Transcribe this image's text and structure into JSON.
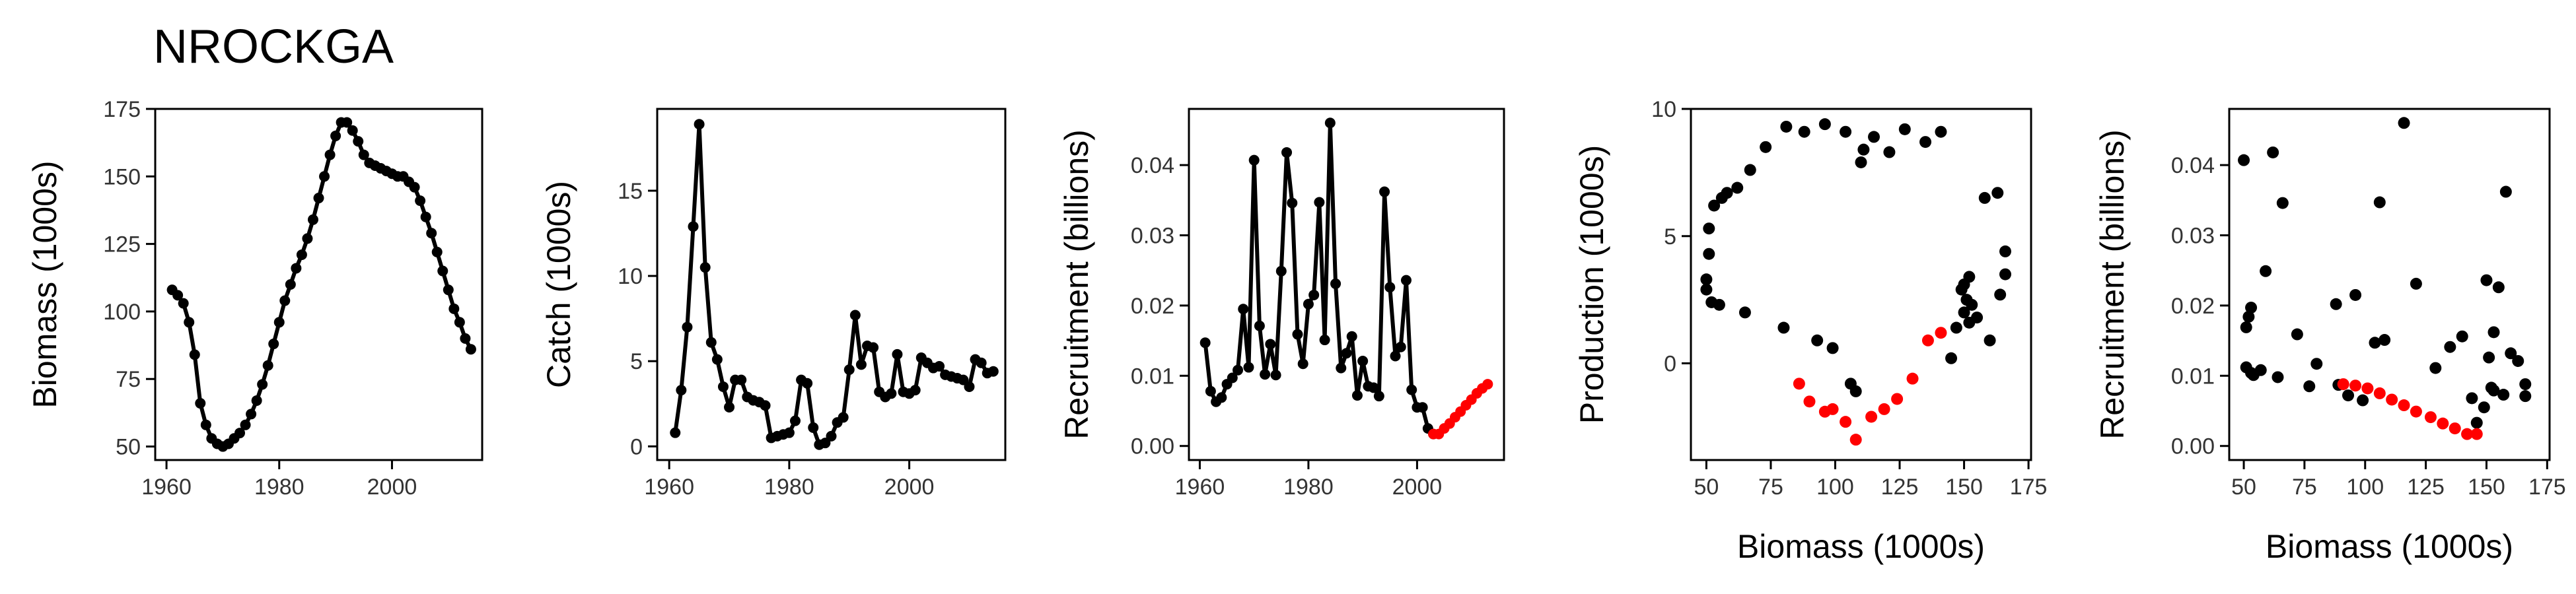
{
  "figure": {
    "title": "NROCKGA"
  },
  "chart_data": [
    {
      "type": "line",
      "ylabel": "Biomass (1000s)",
      "xlabel": "",
      "xlim": [
        1958,
        2016
      ],
      "ylim": [
        45,
        175
      ],
      "xticks": [
        1960,
        1980,
        2000
      ],
      "yticks": [
        50,
        75,
        100,
        125,
        150,
        175
      ],
      "series": [
        {
          "color": "#000000",
          "x": [
            1961,
            1962,
            1963,
            1964,
            1965,
            1966,
            1967,
            1968,
            1969,
            1970,
            1971,
            1972,
            1973,
            1974,
            1975,
            1976,
            1977,
            1978,
            1979,
            1980,
            1981,
            1982,
            1983,
            1984,
            1985,
            1986,
            1987,
            1988,
            1989,
            1990,
            1991,
            1992,
            1993,
            1994,
            1995,
            1996,
            1997,
            1998,
            1999,
            2000,
            2001,
            2002,
            2003,
            2004,
            2005,
            2006,
            2007,
            2008,
            2009,
            2010,
            2011,
            2012,
            2013,
            2014
          ],
          "y": [
            108,
            106,
            103,
            96,
            84,
            66,
            58,
            53,
            51,
            50,
            51,
            53,
            55,
            58,
            62,
            67,
            73,
            80,
            88,
            96,
            104,
            110,
            116,
            121,
            127,
            134,
            142,
            150,
            158,
            165,
            170,
            170,
            167,
            163,
            158,
            155,
            154,
            153,
            152,
            151,
            150,
            150,
            148,
            146,
            141,
            135,
            129,
            122,
            115,
            108,
            101,
            96,
            90,
            86
          ]
        }
      ]
    },
    {
      "type": "line",
      "ylabel": "Catch (1000s)",
      "xlabel": "",
      "xlim": [
        1958,
        2016
      ],
      "ylim": [
        -0.8,
        19.8
      ],
      "xticks": [
        1960,
        1980,
        2000
      ],
      "yticks": [
        0,
        5,
        10,
        15
      ],
      "series": [
        {
          "color": "#000000",
          "x": [
            1961,
            1962,
            1963,
            1964,
            1965,
            1966,
            1967,
            1968,
            1969,
            1970,
            1971,
            1972,
            1973,
            1974,
            1975,
            1976,
            1977,
            1978,
            1979,
            1980,
            1981,
            1982,
            1983,
            1984,
            1985,
            1986,
            1987,
            1988,
            1989,
            1990,
            1991,
            1992,
            1993,
            1994,
            1995,
            1996,
            1997,
            1998,
            1999,
            2000,
            2001,
            2002,
            2003,
            2004,
            2005,
            2006,
            2007,
            2008,
            2009,
            2010,
            2011,
            2012,
            2013,
            2014
          ],
          "y": [
            0.8,
            3.3,
            7,
            12.9,
            18.9,
            10.5,
            6.1,
            5.1,
            3.5,
            2.3,
            3.9,
            3.9,
            2.9,
            2.7,
            2.6,
            2.4,
            0.5,
            0.6,
            0.7,
            0.8,
            1.5,
            3.9,
            3.7,
            1.1,
            0.1,
            0.2,
            0.6,
            1.4,
            1.7,
            4.5,
            7.7,
            4.8,
            5.9,
            5.8,
            3.2,
            2.9,
            3.1,
            5.4,
            3.2,
            3.1,
            3.3,
            5.2,
            4.9,
            4.6,
            4.7,
            4.2,
            4.1,
            4.0,
            3.9,
            3.5,
            5.1,
            4.9,
            4.3,
            4.4
          ]
        }
      ]
    },
    {
      "type": "line",
      "ylabel": "Recruitment (billions)",
      "xlabel": "",
      "xlim": [
        1958,
        2016
      ],
      "ylim": [
        -0.002,
        0.048
      ],
      "xticks": [
        1960,
        1980,
        2000
      ],
      "yticks": [
        0,
        0.01,
        0.02,
        0.03,
        0.04
      ],
      "ytick_labels": [
        "0.00",
        "0.01",
        "0.02",
        "0.03",
        "0.04"
      ],
      "series": [
        {
          "color": "#000000",
          "x": [
            1961,
            1962,
            1963,
            1964,
            1965,
            1966,
            1967,
            1968,
            1969,
            1970,
            1971,
            1972,
            1973,
            1974,
            1975,
            1976,
            1977,
            1978,
            1979,
            1980,
            1981,
            1982,
            1983,
            1984,
            1985,
            1986,
            1987,
            1988,
            1989,
            1990,
            1991,
            1992,
            1993,
            1994,
            1995,
            1996,
            1997,
            1998,
            1999,
            2000,
            2001,
            2002,
            2003
          ],
          "y": [
            0.0147,
            0.0078,
            0.0063,
            0.0069,
            0.0088,
            0.0097,
            0.0108,
            0.0195,
            0.0112,
            0.0407,
            0.0171,
            0.0102,
            0.0145,
            0.0101,
            0.0249,
            0.0418,
            0.0346,
            0.0159,
            0.0117,
            0.0202,
            0.0215,
            0.0347,
            0.0151,
            0.046,
            0.0231,
            0.0111,
            0.0132,
            0.0156,
            0.0072,
            0.0121,
            0.0085,
            0.0083,
            0.0071,
            0.0362,
            0.0226,
            0.0128,
            0.0141,
            0.0236,
            0.008,
            0.0055,
            0.0055,
            0.0025,
            0.0017
          ]
        },
        {
          "color": "#ff0000",
          "x": [
            2003,
            2004,
            2005,
            2006,
            2007,
            2008,
            2009,
            2010,
            2011,
            2012,
            2013
          ],
          "y": [
            0.0017,
            0.0017,
            0.0025,
            0.0032,
            0.0041,
            0.0049,
            0.0058,
            0.0066,
            0.0075,
            0.0082,
            0.0088
          ]
        }
      ]
    },
    {
      "type": "scatter",
      "ylabel": "Production (1000s)",
      "xlabel": "Biomass (1000s)",
      "xlim": [
        44,
        176
      ],
      "ylim": [
        -3.8,
        10
      ],
      "xticks": [
        50,
        75,
        100,
        125,
        150,
        175
      ],
      "yticks": [
        0,
        5,
        10
      ],
      "series": [
        {
          "color": "#000000",
          "points": [
            [
              50,
              2.9
            ],
            [
              50,
              3.3
            ],
            [
              51,
              4.3
            ],
            [
              51,
              5.3
            ],
            [
              52,
              2.4
            ],
            [
              53,
              6.2
            ],
            [
              55,
              2.3
            ],
            [
              56,
              6.5
            ],
            [
              58,
              6.7
            ],
            [
              62,
              6.9
            ],
            [
              65,
              2.0
            ],
            [
              67,
              7.6
            ],
            [
              73,
              8.5
            ],
            [
              80,
              1.4
            ],
            [
              81,
              9.3
            ],
            [
              88,
              9.1
            ],
            [
              93,
              0.9
            ],
            [
              96,
              9.4
            ],
            [
              99,
              0.6
            ],
            [
              104,
              9.1
            ],
            [
              106,
              -0.8
            ],
            [
              108,
              -1.1
            ],
            [
              110,
              7.9
            ],
            [
              111,
              8.4
            ],
            [
              115,
              8.9
            ],
            [
              121,
              8.3
            ],
            [
              127,
              9.2
            ],
            [
              135,
              8.7
            ],
            [
              141,
              9.1
            ],
            [
              145,
              0.2
            ],
            [
              147,
              1.4
            ],
            [
              149,
              2.9
            ],
            [
              150,
              3.1
            ],
            [
              150,
              2.0
            ],
            [
              151,
              2.5
            ],
            [
              152,
              3.4
            ],
            [
              152,
              1.6
            ],
            [
              153,
              2.3
            ],
            [
              155,
              1.8
            ],
            [
              158,
              6.5
            ],
            [
              160,
              0.9
            ],
            [
              163,
              6.7
            ],
            [
              164,
              2.7
            ],
            [
              166,
              3.5
            ],
            [
              166,
              4.4
            ]
          ]
        },
        {
          "color": "#ff0000",
          "points": [
            [
              86,
              -0.8
            ],
            [
              90,
              -1.5
            ],
            [
              96,
              -1.9
            ],
            [
              99,
              -1.8
            ],
            [
              104,
              -2.3
            ],
            [
              108,
              -3.0
            ],
            [
              114,
              -2.1
            ],
            [
              119,
              -1.8
            ],
            [
              124,
              -1.4
            ],
            [
              130,
              -0.6
            ],
            [
              136,
              0.9
            ],
            [
              141,
              1.2
            ]
          ]
        }
      ]
    },
    {
      "type": "scatter",
      "ylabel": "Recruitment (billions)",
      "xlabel": "Biomass (1000s)",
      "xlim": [
        44,
        176
      ],
      "ylim": [
        -0.002,
        0.048
      ],
      "xticks": [
        50,
        75,
        100,
        125,
        150,
        175
      ],
      "yticks": [
        0,
        0.01,
        0.02,
        0.03,
        0.04
      ],
      "ytick_labels": [
        "0.00",
        "0.01",
        "0.02",
        "0.03",
        "0.04"
      ],
      "series": [
        {
          "color": "#000000",
          "points": [
            [
              50,
              0.0407
            ],
            [
              51,
              0.0169
            ],
            [
              51,
              0.0112
            ],
            [
              52,
              0.0184
            ],
            [
              53,
              0.0197
            ],
            [
              53,
              0.0104
            ],
            [
              54,
              0.0101
            ],
            [
              57,
              0.0108
            ],
            [
              59,
              0.0249
            ],
            [
              62,
              0.0418
            ],
            [
              64,
              0.0098
            ],
            [
              66,
              0.0346
            ],
            [
              72,
              0.0159
            ],
            [
              77,
              0.0085
            ],
            [
              80,
              0.0117
            ],
            [
              88,
              0.0202
            ],
            [
              89,
              0.0087
            ],
            [
              93,
              0.0072
            ],
            [
              96,
              0.0215
            ],
            [
              99,
              0.0065
            ],
            [
              104,
              0.0147
            ],
            [
              106,
              0.0347
            ],
            [
              108,
              0.0151
            ],
            [
              116,
              0.046
            ],
            [
              121,
              0.0231
            ],
            [
              129,
              0.0111
            ],
            [
              135,
              0.0141
            ],
            [
              140,
              0.0156
            ],
            [
              144,
              0.0068
            ],
            [
              146,
              0.0033
            ],
            [
              149,
              0.0055
            ],
            [
              150,
              0.0236
            ],
            [
              151,
              0.0126
            ],
            [
              152,
              0.0083
            ],
            [
              153,
              0.0162
            ],
            [
              153,
              0.0079
            ],
            [
              155,
              0.0226
            ],
            [
              157,
              0.0073
            ],
            [
              158,
              0.0362
            ],
            [
              160,
              0.0132
            ],
            [
              163,
              0.0121
            ],
            [
              166,
              0.0071
            ],
            [
              166,
              0.0088
            ]
          ]
        },
        {
          "color": "#ff0000",
          "points": [
            [
              91,
              0.0088
            ],
            [
              96,
              0.0086
            ],
            [
              101,
              0.0082
            ],
            [
              106,
              0.0075
            ],
            [
              111,
              0.0066
            ],
            [
              116,
              0.0058
            ],
            [
              121,
              0.0049
            ],
            [
              127,
              0.0041
            ],
            [
              132,
              0.0032
            ],
            [
              137,
              0.0025
            ],
            [
              142,
              0.0017
            ],
            [
              146,
              0.0017
            ]
          ]
        }
      ]
    }
  ]
}
